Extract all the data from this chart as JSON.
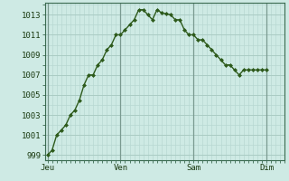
{
  "background_color": "#ceeae4",
  "line_color": "#2d5a1b",
  "marker_color": "#2d5a1b",
  "grid_minor_color": "#b8d8d2",
  "grid_major_color": "#aaccc4",
  "vline_color": "#7a9a90",
  "ylim": [
    998.5,
    1014.2
  ],
  "yticks": [
    999,
    1001,
    1003,
    1005,
    1007,
    1009,
    1011,
    1013
  ],
  "day_labels": [
    "Jeu",
    "Ven",
    "Sam",
    "Dim"
  ],
  "day_positions": [
    0,
    8,
    16,
    24
  ],
  "xlim": [
    -0.3,
    26.0
  ],
  "x_values": [
    0,
    0.5,
    1,
    1.5,
    2,
    2.5,
    3,
    3.5,
    4,
    4.5,
    5,
    5.5,
    6,
    6.5,
    7,
    7.5,
    8,
    8.5,
    9,
    9.5,
    10,
    10.5,
    11,
    11.5,
    12,
    12.5,
    13,
    13.5,
    14,
    14.5,
    15,
    15.5,
    16,
    16.5,
    17,
    17.5,
    18,
    18.5,
    19,
    19.5,
    20,
    20.5,
    21,
    21.5,
    22,
    22.5,
    23,
    23.5,
    24
  ],
  "y_values": [
    999,
    999.5,
    1001,
    1001.5,
    1002,
    1003,
    1003.5,
    1004.5,
    1006,
    1007,
    1007,
    1008,
    1008.5,
    1009.5,
    1010,
    1011,
    1011,
    1011.5,
    1012,
    1012.5,
    1013.5,
    1013.5,
    1013,
    1012.5,
    1013.5,
    1013.2,
    1013.1,
    1013.0,
    1012.5,
    1012.5,
    1011.5,
    1011.0,
    1011.0,
    1010.5,
    1010.5,
    1010.0,
    1009.5,
    1009.0,
    1008.5,
    1008.0,
    1008.0,
    1007.5,
    1007.0,
    1007.5,
    1007.5,
    1007.5,
    1007.5,
    1007.5,
    1007.5
  ]
}
